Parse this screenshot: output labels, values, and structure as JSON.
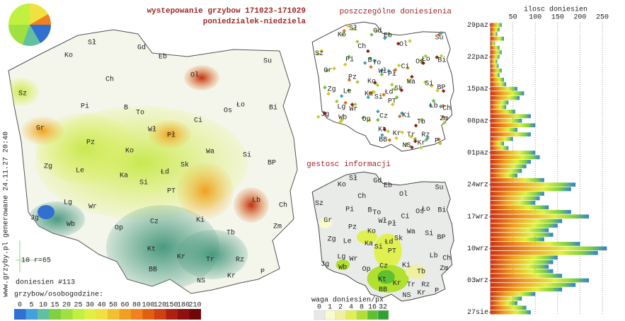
{
  "header": {
    "title": "wystepowanie grzybow 171023-171029",
    "subtitle": "poniedzialek-niedziela"
  },
  "map_labels": [
    "Sł",
    "Gd",
    "Eb",
    "Su",
    "Ko",
    "Ch",
    "Ol",
    "Sz",
    "Pi",
    "B",
    "To",
    "Ło",
    "Os",
    "Bi",
    "Ci",
    "Gr",
    "Wł",
    "Pł",
    "Pz",
    "Ko",
    "Wa",
    "Si",
    "Zg",
    "Le",
    "Ka",
    "Łd",
    "Sk",
    "BP",
    "Si",
    "PT",
    "Lb",
    "Ch",
    "Lg",
    "Wr",
    "Jg",
    "Wb",
    "Op",
    "Cz",
    "Ki",
    "Zm",
    "Tb",
    "Kt",
    "Kr",
    "Tr",
    "Rz",
    "BB",
    "P",
    "NS",
    "Kr"
  ],
  "panels": {
    "points_title": "poszczególne doniesienia",
    "density_title": "gestosc informacji"
  },
  "report_count": "doniesien #113",
  "scale_note": "10 r=65",
  "footer_vertical": "www.grzyby.pl generowane 24.11.27 20:40",
  "legend": {
    "title": "grzybow/osobogodzine:",
    "values": [
      0,
      5,
      10,
      15,
      20,
      25,
      30,
      40,
      50,
      60,
      80,
      100,
      120,
      150,
      180,
      210
    ],
    "colors": [
      "#3070d0",
      "#40a0e0",
      "#60c0a0",
      "#80d040",
      "#a0e040",
      "#c0f040",
      "#e0f040",
      "#f0e040",
      "#f0c030",
      "#f0a020",
      "#f08020",
      "#e06010",
      "#d04010",
      "#b02010",
      "#901010",
      "#700808"
    ]
  },
  "weight_legend": {
    "title": "waga doniesien/px",
    "values": [
      0,
      1,
      2,
      4,
      8,
      16,
      32
    ],
    "colors": [
      "#e8e8e8",
      "#fafad0",
      "#f0f0a0",
      "#e0f050",
      "#b0e030",
      "#60c030",
      "#30a030"
    ]
  },
  "chart_data": {
    "type": "bar",
    "horizontal": true,
    "x_label": "ilosc doniesien",
    "xlim": [
      0,
      280
    ],
    "xticks": [
      50,
      100,
      150,
      200,
      250
    ],
    "grid": true,
    "categories": [
      "29paz",
      null,
      null,
      null,
      null,
      null,
      null,
      "22paz",
      null,
      null,
      null,
      null,
      null,
      null,
      "15paz",
      null,
      null,
      null,
      null,
      null,
      null,
      "08paz",
      null,
      null,
      null,
      null,
      null,
      null,
      "01paz",
      null,
      null,
      null,
      null,
      null,
      null,
      "24wrz",
      null,
      null,
      null,
      null,
      null,
      null,
      "17wrz",
      null,
      null,
      null,
      null,
      null,
      null,
      "10wrz",
      null,
      null,
      null,
      null,
      null,
      null,
      "03wrz",
      null,
      null,
      null,
      null,
      null,
      null,
      "27sie"
    ],
    "values": [
      25,
      20,
      15,
      30,
      10,
      20,
      25,
      20,
      15,
      18,
      25,
      20,
      30,
      35,
      60,
      75,
      65,
      40,
      35,
      55,
      90,
      70,
      100,
      60,
      90,
      50,
      30,
      40,
      100,
      110,
      90,
      80,
      70,
      60,
      120,
      190,
      180,
      120,
      110,
      100,
      130,
      180,
      220,
      160,
      150,
      130,
      140,
      120,
      200,
      260,
      240,
      150,
      140,
      130,
      140,
      160,
      220,
      190,
      160,
      100,
      70,
      60,
      80,
      90
    ]
  }
}
